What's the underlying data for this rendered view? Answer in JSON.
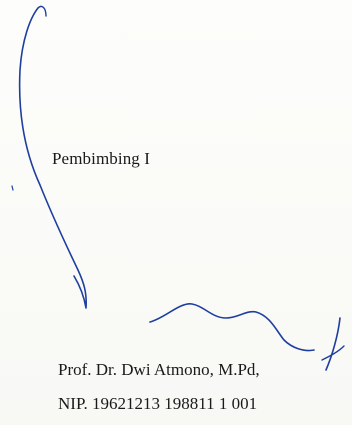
{
  "approval": {
    "role": "Pembimbing I",
    "name": "Prof. Dr. Dwi Atmono, M.Pd,",
    "nip": "NIP. 19621213 198811 1 001"
  },
  "signature": {
    "type": "handwritten-signature",
    "ink_color": "#1f3fa0"
  }
}
